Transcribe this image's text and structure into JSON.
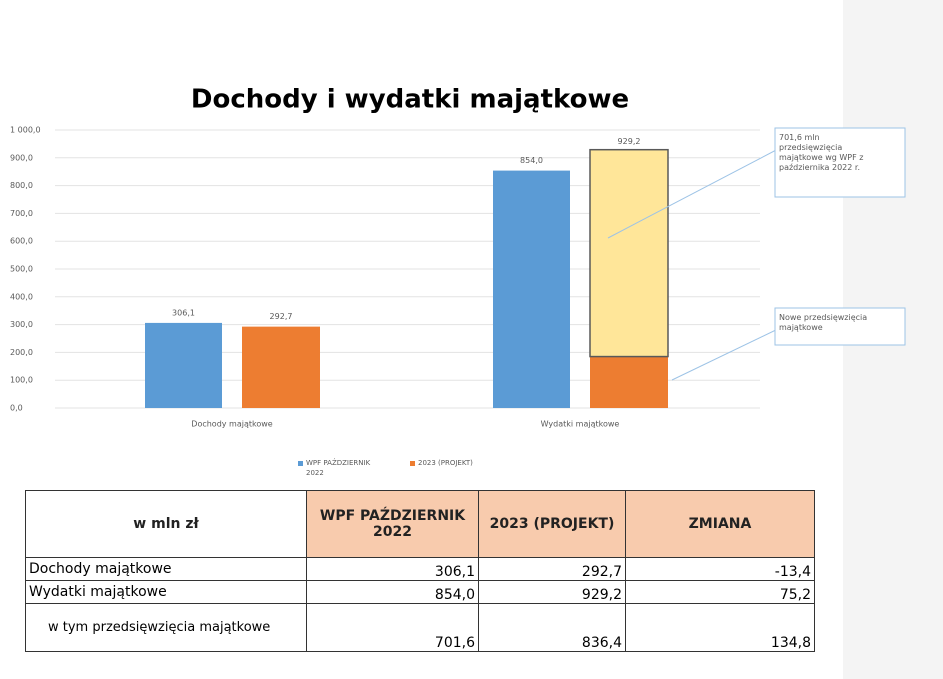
{
  "chart_data": {
    "type": "bar",
    "title": "Dochody i wydatki majątkowe",
    "categories": [
      "Dochody majątkowe",
      "Wydatki majątkowe"
    ],
    "series": [
      {
        "name": "WPF PAŹDZIERNIK 2022",
        "color": "#5b9bd5",
        "values": [
          306.1,
          854.0
        ],
        "value_labels": [
          "306,1",
          "854,0"
        ]
      },
      {
        "name": "2023 (PROJEKT)",
        "color": "#ed7d31",
        "values": [
          292.7,
          185
        ],
        "value_labels": [
          "292,7",
          null
        ]
      },
      {
        "color": "#ffe699",
        "values": [
          null,
          744.2
        ],
        "stack_on": 1
      }
    ],
    "stack_label": {
      "value": 929.2,
      "label": "929,2"
    },
    "ylim": [
      0,
      1000
    ],
    "yticks": [
      {
        "value": 0,
        "label": "0,0"
      },
      {
        "value": 100,
        "label": "100,0"
      },
      {
        "value": 200,
        "label": "200,0"
      },
      {
        "value": 300,
        "label": "300,0"
      },
      {
        "value": 400,
        "label": "400,0"
      },
      {
        "value": 500,
        "label": "500,0"
      },
      {
        "value": 600,
        "label": "600,0"
      },
      {
        "value": 700,
        "label": "700,0"
      },
      {
        "value": 800,
        "label": "800,0"
      },
      {
        "value": 900,
        "label": "900,0"
      },
      {
        "value": 1000,
        "label": "1 000,0"
      }
    ],
    "grid": true,
    "annotations": [
      "701,6 mln przedsięwzięcia majątkowe wg WPF z października 2022 r.",
      "Nowe przedsięwzięcia majątkowe"
    ]
  },
  "table": {
    "header": [
      "w mln zł",
      "WPF PAŹDZIERNIK 2022",
      "2023 (PROJEKT)",
      "ZMIANA"
    ],
    "rows": [
      [
        "Dochody majątkowe",
        "306,1",
        "292,7",
        "-13,4"
      ],
      [
        "Wydatki majątkowe",
        "854,0",
        "929,2",
        "75,2"
      ],
      [
        "w tym przedsięwzięcia majątkowe",
        "701,6",
        "836,4",
        "134,8"
      ]
    ]
  }
}
